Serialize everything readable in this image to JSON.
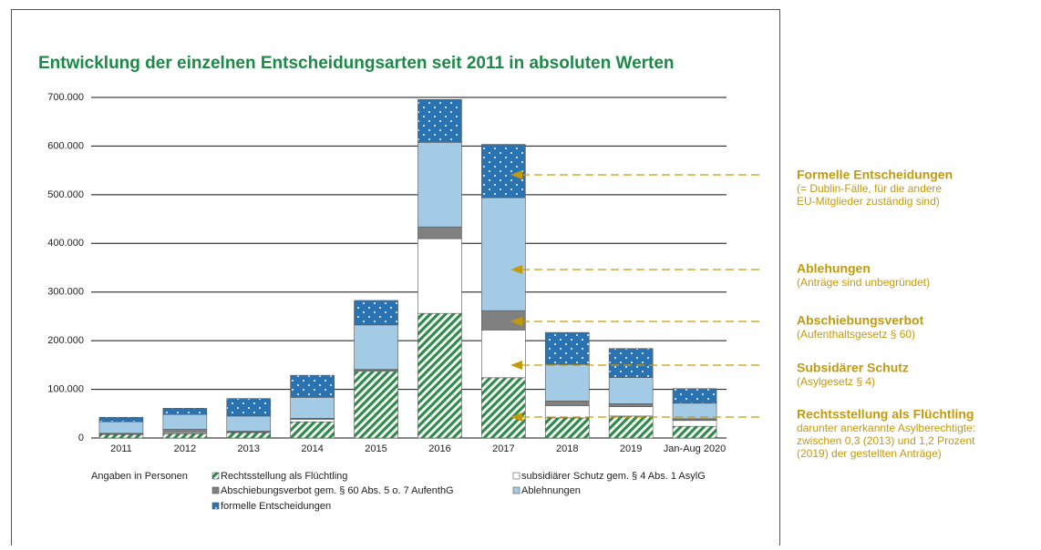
{
  "chart_data": {
    "type": "stacked_bar",
    "title": "Entwicklung der einzelnen Entscheidungsarten seit 2011 in absoluten Werten",
    "note": "Angaben in Personen",
    "categories": [
      "2011",
      "2012",
      "2013",
      "2014",
      "2015",
      "2016",
      "2017",
      "2018",
      "2019",
      "Jan-Aug 2020"
    ],
    "series": [
      {
        "name": "Rechtsstellung als Flüchtling",
        "color": "#2e8b4a",
        "pattern": "hatch",
        "values": [
          7100,
          8800,
          10900,
          33300,
          137100,
          256100,
          123900,
          41400,
          45100,
          24000
        ]
      },
      {
        "name": "subsidiärer Schutz gem. § 4 Abs. 1 AsylG",
        "color": "#ffffff",
        "pattern": "none",
        "values": [
          700,
          2000,
          900,
          5200,
          1700,
          153700,
          98100,
          25100,
          19400,
          12000
        ]
      },
      {
        "name": "Abschiebungsverbot gem. § 60 Abs. 5 o. 7 AufenthG",
        "color": "#808080",
        "pattern": "none",
        "values": [
          1900,
          7000,
          2200,
          2100,
          2100,
          24100,
          39700,
          9500,
          5900,
          3500
        ]
      },
      {
        "name": "Ablehnungen",
        "color": "#a3cbe6",
        "pattern": "none",
        "values": [
          23700,
          30700,
          31100,
          43000,
          91500,
          173800,
          232300,
          75400,
          54000,
          32000
        ]
      },
      {
        "name": "formelle Entscheidungen",
        "color": "#2a73b2",
        "pattern": "dots",
        "values": [
          9200,
          12600,
          36000,
          45300,
          50300,
          88000,
          109500,
          65500,
          59500,
          30000
        ]
      }
    ],
    "ylim": [
      0,
      700000
    ],
    "yticks": [
      0,
      {
        "value": 100000,
        "label": "100.000"
      },
      {
        "value": 200000,
        "label": "200.000"
      },
      {
        "value": 300000,
        "label": "300.000"
      },
      {
        "value": 400000,
        "label": "400.000"
      },
      {
        "value": 500000,
        "label": "500.000"
      },
      {
        "value": 600000,
        "label": "600.000"
      },
      {
        "value": 700000,
        "label": "700.000"
      }
    ],
    "grid": true,
    "annotations": [
      {
        "title": "Formelle Entscheidungen",
        "lines": [
          "(= Dublin-Fälle, für die andere",
          "EU-Mitglieder zuständig sind)"
        ]
      },
      {
        "title": "Ablehungen",
        "lines": [
          "(Anträge sind unbegründet)"
        ]
      },
      {
        "title": "Abschiebungsverbot",
        "lines": [
          "(Aufenthaltsgesetz § 60)"
        ]
      },
      {
        "title": "Subsidärer Schutz",
        "lines": [
          "(Asylgesetz § 4)"
        ]
      },
      {
        "title": "Rechtsstellung als Flüchtling",
        "lines": [
          "darunter anerkannte Asylberechtigte:",
          "zwischen 0,3 (2013) und 1,2 Prozent",
          "(2019) der gestellten Anträge)"
        ]
      }
    ],
    "annotation_color": "#c39a0c"
  }
}
